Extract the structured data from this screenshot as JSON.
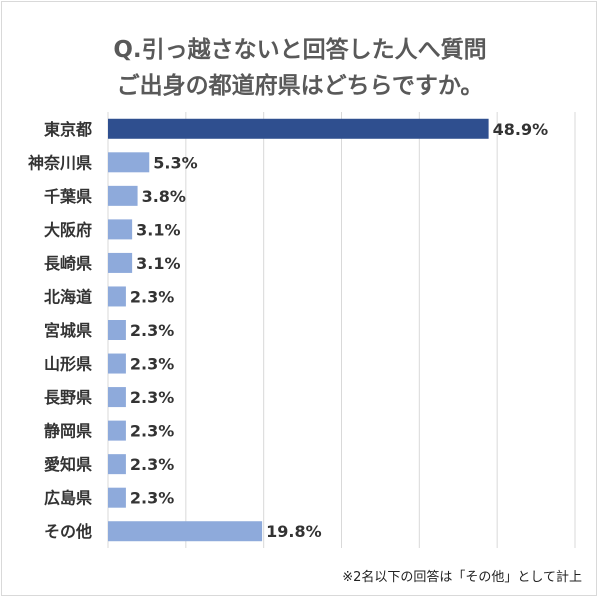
{
  "title_line1": "Q.引っ越さないと回答した人へ質問",
  "title_line2": "ご出身の都道府県はどちらですか。",
  "footnote": "※2名以下の回答は「その他」として計上",
  "colors": {
    "highlight": "#2f4f8f",
    "bar": "#8eaadb",
    "grid": "#d9d9d9"
  },
  "chart_data": {
    "type": "bar",
    "orientation": "horizontal",
    "title": "Q.引っ越さないと回答した人へ質問 ご出身の都道府県はどちらですか。",
    "categories": [
      "東京都",
      "神奈川県",
      "千葉県",
      "大阪府",
      "長崎県",
      "北海道",
      "宮城県",
      "山形県",
      "長野県",
      "静岡県",
      "愛知県",
      "広島県",
      "その他"
    ],
    "values": [
      48.9,
      5.3,
      3.8,
      3.1,
      3.1,
      2.3,
      2.3,
      2.3,
      2.3,
      2.3,
      2.3,
      2.3,
      19.8
    ],
    "labels": [
      "48.9%",
      "5.3%",
      "3.8%",
      "3.1%",
      "3.1%",
      "2.3%",
      "2.3%",
      "2.3%",
      "2.3%",
      "2.3%",
      "2.3%",
      "2.3%",
      "19.8%"
    ],
    "xlim": [
      0,
      60
    ],
    "grid": true,
    "highlighted_category": "東京都"
  }
}
